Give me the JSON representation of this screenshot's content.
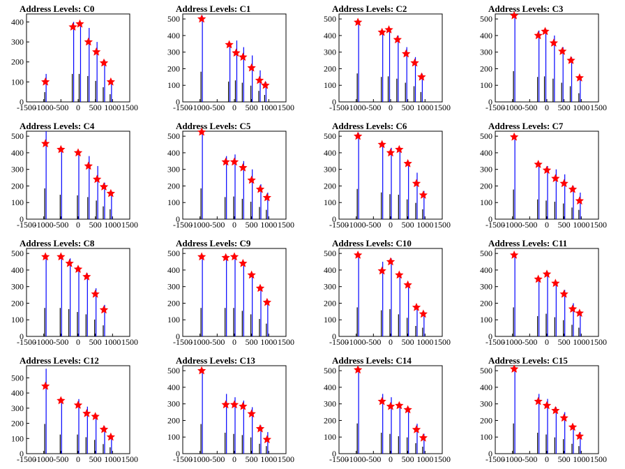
{
  "colors": {
    "bar": "#0000ff",
    "bar_dark": "#000000",
    "marker": "#ff0000",
    "frame": "#000000"
  },
  "chart_data": [
    {
      "title": "Address Levels: C0",
      "type": "bar",
      "xlim": [
        -1500,
        1500
      ],
      "ylim": [
        0,
        440
      ],
      "yticks": [
        0,
        100,
        200,
        300,
        400
      ],
      "xticks": [
        -1500,
        -1000,
        -500,
        0,
        500,
        1000,
        1500
      ],
      "x": [
        -950,
        -150,
        50,
        300,
        530,
        750,
        950
      ],
      "values": [
        140,
        400,
        400,
        370,
        300,
        210,
        110
      ],
      "markers": [
        100,
        375,
        390,
        300,
        250,
        195,
        100
      ]
    },
    {
      "title": "Address Levels: C1",
      "type": "bar",
      "xlim": [
        -1500,
        1500
      ],
      "ylim": [
        0,
        530
      ],
      "yticks": [
        0,
        100,
        200,
        300,
        400,
        500
      ],
      "xticks": [
        -1500,
        -1000,
        -500,
        0,
        500,
        1000,
        1500
      ],
      "x": [
        -950,
        -150,
        50,
        250,
        500,
        730,
        900
      ],
      "values": [
        520,
        350,
        370,
        330,
        280,
        190,
        120
      ],
      "markers": [
        500,
        345,
        295,
        270,
        205,
        130,
        100
      ]
    },
    {
      "title": "Address Levels: C2",
      "type": "bar",
      "xlim": [
        -1500,
        1500
      ],
      "ylim": [
        0,
        530
      ],
      "yticks": [
        0,
        100,
        200,
        300,
        400,
        500
      ],
      "xticks": [
        -1500,
        -1000,
        -500,
        0,
        500,
        1000,
        1500
      ],
      "x": [
        -950,
        -250,
        -50,
        200,
        450,
        700,
        900
      ],
      "values": [
        490,
        430,
        440,
        400,
        330,
        270,
        170
      ],
      "markers": [
        480,
        420,
        435,
        375,
        290,
        235,
        150
      ]
    },
    {
      "title": "Address Levels: C3",
      "type": "bar",
      "xlim": [
        -1500,
        1500
      ],
      "ylim": [
        0,
        530
      ],
      "yticks": [
        0,
        100,
        200,
        300,
        400,
        500
      ],
      "xticks": [
        -1500,
        -1000,
        -500,
        0,
        500,
        1000,
        1500
      ],
      "x": [
        -950,
        -250,
        -50,
        200,
        450,
        700,
        950
      ],
      "values": [
        530,
        430,
        440,
        400,
        330,
        270,
        150
      ],
      "markers": [
        520,
        400,
        425,
        355,
        305,
        250,
        145
      ]
    },
    {
      "title": "Address Levels: C4",
      "type": "bar",
      "xlim": [
        -1500,
        1500
      ],
      "ylim": [
        0,
        530
      ],
      "yticks": [
        0,
        100,
        200,
        300,
        400,
        500
      ],
      "xticks": [
        -1500,
        -1000,
        -500,
        0,
        500,
        1000,
        1500
      ],
      "x": [
        -950,
        -500,
        0,
        300,
        550,
        750,
        950
      ],
      "values": [
        530,
        420,
        410,
        380,
        320,
        220,
        170
      ],
      "markers": [
        455,
        420,
        400,
        320,
        240,
        195,
        155
      ]
    },
    {
      "title": "Address Levels: C5",
      "type": "bar",
      "xlim": [
        -1500,
        1500
      ],
      "ylim": [
        0,
        530
      ],
      "yticks": [
        0,
        100,
        200,
        300,
        400,
        500
      ],
      "xticks": [
        -1500,
        -1000,
        -500,
        0,
        500,
        1000,
        1500
      ],
      "x": [
        -950,
        -250,
        0,
        250,
        500,
        750,
        950
      ],
      "values": [
        530,
        380,
        390,
        350,
        300,
        210,
        160
      ],
      "markers": [
        525,
        345,
        345,
        310,
        235,
        180,
        130
      ]
    },
    {
      "title": "Address Levels: C6",
      "type": "bar",
      "xlim": [
        -1500,
        1500
      ],
      "ylim": [
        0,
        530
      ],
      "yticks": [
        0,
        100,
        200,
        300,
        400,
        500
      ],
      "xticks": [
        -1500,
        -1000,
        -500,
        0,
        500,
        1000,
        1500
      ],
      "x": [
        -950,
        -250,
        0,
        250,
        500,
        750,
        950
      ],
      "values": [
        520,
        460,
        430,
        420,
        340,
        280,
        170
      ],
      "markers": [
        500,
        450,
        400,
        420,
        335,
        215,
        145
      ]
    },
    {
      "title": "Address Levels: C7",
      "type": "bar",
      "xlim": [
        -1500,
        1500
      ],
      "ylim": [
        0,
        530
      ],
      "yticks": [
        0,
        100,
        200,
        300,
        400,
        500
      ],
      "xticks": [
        -1500,
        -1000,
        -500,
        0,
        500,
        1000,
        1500
      ],
      "x": [
        -950,
        -250,
        0,
        250,
        500,
        750,
        950
      ],
      "values": [
        510,
        340,
        320,
        300,
        270,
        200,
        160
      ],
      "markers": [
        495,
        330,
        295,
        245,
        215,
        180,
        110
      ]
    },
    {
      "title": "Address Levels: C8",
      "type": "bar",
      "xlim": [
        -1500,
        1500
      ],
      "ylim": [
        0,
        530
      ],
      "yticks": [
        0,
        100,
        200,
        300,
        400,
        500
      ],
      "xticks": [
        -1500,
        -1000,
        -500,
        0,
        500,
        1000,
        1500
      ],
      "x": [
        -950,
        -500,
        -250,
        0,
        250,
        500,
        750
      ],
      "values": [
        490,
        490,
        470,
        420,
        380,
        290,
        190
      ],
      "markers": [
        480,
        480,
        440,
        405,
        360,
        255,
        160
      ]
    },
    {
      "title": "Address Levels: C9",
      "type": "bar",
      "xlim": [
        -1500,
        1500
      ],
      "ylim": [
        0,
        530
      ],
      "yticks": [
        0,
        100,
        200,
        300,
        400,
        500
      ],
      "xticks": [
        -1500,
        -1000,
        -500,
        0,
        500,
        1000,
        1500
      ],
      "x": [
        -950,
        -250,
        0,
        250,
        500,
        750,
        950
      ],
      "values": [
        490,
        490,
        490,
        440,
        380,
        300,
        220
      ],
      "markers": [
        480,
        475,
        480,
        440,
        370,
        290,
        205
      ]
    },
    {
      "title": "Address Levels: C10",
      "type": "bar",
      "xlim": [
        -1500,
        1500
      ],
      "ylim": [
        0,
        530
      ],
      "yticks": [
        0,
        100,
        200,
        300,
        400,
        500
      ],
      "xticks": [
        -1500,
        -1000,
        -500,
        0,
        500,
        1000,
        1500
      ],
      "x": [
        -950,
        -250,
        0,
        250,
        500,
        750,
        950
      ],
      "values": [
        500,
        450,
        470,
        380,
        320,
        180,
        150
      ],
      "markers": [
        490,
        395,
        450,
        370,
        310,
        175,
        135
      ]
    },
    {
      "title": "Address Levels: C11",
      "type": "bar",
      "xlim": [
        -1500,
        1500
      ],
      "ylim": [
        0,
        530
      ],
      "yticks": [
        0,
        100,
        200,
        300,
        400,
        500
      ],
      "xticks": [
        -1500,
        -1000,
        -500,
        0,
        500,
        1000,
        1500
      ],
      "x": [
        -950,
        -250,
        0,
        250,
        500,
        750,
        950
      ],
      "values": [
        500,
        350,
        390,
        330,
        280,
        200,
        150
      ],
      "markers": [
        490,
        345,
        375,
        320,
        255,
        165,
        140
      ]
    },
    {
      "title": "Address Levels: C12",
      "type": "bar",
      "xlim": [
        -1500,
        1500
      ],
      "ylim": [
        0,
        580
      ],
      "yticks": [
        0,
        100,
        200,
        300,
        400,
        500
      ],
      "xticks": [
        -1500,
        -1000,
        -500,
        0,
        500,
        1000,
        1500
      ],
      "x": [
        -950,
        -500,
        0,
        250,
        500,
        750,
        950
      ],
      "values": [
        560,
        360,
        360,
        310,
        260,
        180,
        120
      ],
      "markers": [
        445,
        350,
        320,
        265,
        245,
        160,
        110
      ]
    },
    {
      "title": "Address Levels: C13",
      "type": "bar",
      "xlim": [
        -1500,
        1500
      ],
      "ylim": [
        0,
        530
      ],
      "yticks": [
        0,
        100,
        200,
        300,
        400,
        500
      ],
      "xticks": [
        -1500,
        -1000,
        -500,
        0,
        500,
        1000,
        1500
      ],
      "x": [
        -950,
        -250,
        0,
        250,
        500,
        750,
        950
      ],
      "values": [
        510,
        360,
        340,
        320,
        280,
        170,
        130
      ],
      "markers": [
        500,
        295,
        295,
        285,
        240,
        150,
        85
      ]
    },
    {
      "title": "Address Levels: C14",
      "type": "bar",
      "xlim": [
        -1500,
        1500
      ],
      "ylim": [
        0,
        530
      ],
      "yticks": [
        0,
        100,
        200,
        300,
        400,
        500
      ],
      "xticks": [
        -1500,
        -1000,
        -500,
        0,
        500,
        1000,
        1500
      ],
      "x": [
        -950,
        -250,
        0,
        250,
        500,
        750,
        950
      ],
      "values": [
        520,
        360,
        340,
        300,
        280,
        180,
        120
      ],
      "markers": [
        505,
        315,
        285,
        290,
        265,
        145,
        95
      ]
    },
    {
      "title": "Address Levels: C15",
      "type": "bar",
      "xlim": [
        -1500,
        1500
      ],
      "ylim": [
        0,
        530
      ],
      "yticks": [
        0,
        100,
        200,
        300,
        400,
        500
      ],
      "xticks": [
        -1500,
        -1000,
        -500,
        0,
        500,
        1000,
        1500
      ],
      "x": [
        -950,
        -250,
        0,
        250,
        500,
        750,
        950
      ],
      "values": [
        520,
        360,
        330,
        280,
        250,
        170,
        130
      ],
      "markers": [
        510,
        315,
        290,
        260,
        215,
        160,
        105
      ]
    }
  ]
}
